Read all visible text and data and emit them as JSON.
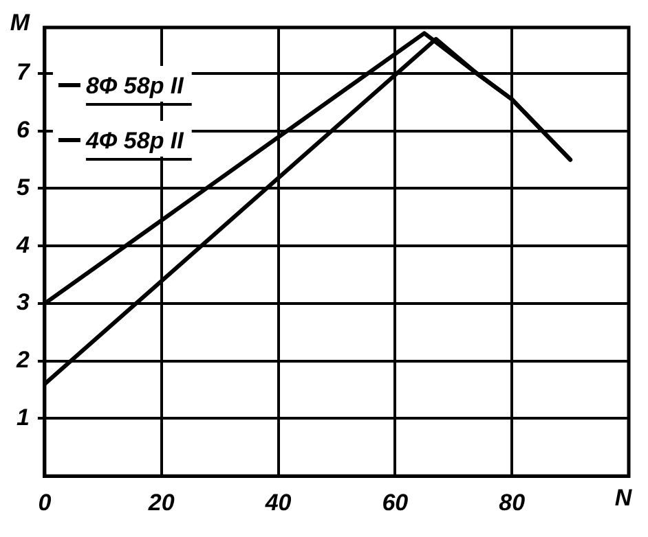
{
  "chart_data": {
    "type": "line",
    "xlabel": "N",
    "ylabel": "M",
    "xlim": [
      0,
      100
    ],
    "xticks": [
      0,
      20,
      40,
      60,
      80
    ],
    "ylim": [
      0,
      7.8
    ],
    "yticks": [
      1,
      2,
      3,
      4,
      5,
      6,
      7
    ],
    "grid": true,
    "legend": "top left",
    "marker": "none",
    "line_style": "solid",
    "series": [
      {
        "name": "8Ф 58р II",
        "color": "#000000",
        "x": [
          0,
          65,
          74,
          80,
          90
        ],
        "values": [
          3,
          7.7,
          7.0,
          6.55,
          5.5
        ]
      },
      {
        "name": "4Ф 58р II",
        "color": "#000000",
        "x": [
          0,
          67,
          74,
          80,
          90
        ],
        "values": [
          1.6,
          7.6,
          7.0,
          6.55,
          5.5
        ]
      }
    ]
  }
}
